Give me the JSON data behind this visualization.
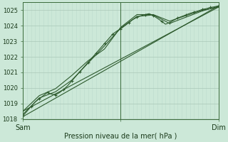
{
  "xlabel": "Pression niveau de la mer( hPa )",
  "ylim": [
    1018,
    1025.5
  ],
  "xlim": [
    0,
    48
  ],
  "yticks": [
    1018,
    1019,
    1020,
    1021,
    1022,
    1023,
    1024,
    1025
  ],
  "xtick_positions": [
    0,
    24,
    48
  ],
  "xtick_labels": [
    "Sam",
    "",
    "Dim"
  ],
  "bg_color": "#cce8d8",
  "grid_color_major": "#aac8b8",
  "grid_color_minor": "#bbdacc",
  "line_color": "#2d5a2d",
  "vline_x": 24,
  "line1_x": [
    0,
    1,
    2,
    3,
    4,
    5,
    6,
    7,
    8,
    9,
    10,
    11,
    12,
    13,
    14,
    15,
    16,
    17,
    18,
    19,
    20,
    21,
    22,
    23,
    24,
    25,
    26,
    27,
    28,
    29,
    30,
    31,
    32,
    33,
    34,
    35,
    36,
    37,
    38,
    39,
    40,
    41,
    42,
    43,
    44,
    45,
    46,
    47,
    48
  ],
  "line1_y": [
    1018.2,
    1018.5,
    1018.8,
    1019.1,
    1019.3,
    1019.5,
    1019.7,
    1019.6,
    1019.55,
    1019.7,
    1019.9,
    1020.15,
    1020.45,
    1020.75,
    1021.05,
    1021.35,
    1021.65,
    1021.95,
    1022.25,
    1022.55,
    1022.85,
    1023.15,
    1023.45,
    1023.65,
    1023.8,
    1024.0,
    1024.2,
    1024.4,
    1024.55,
    1024.65,
    1024.72,
    1024.78,
    1024.65,
    1024.48,
    1024.3,
    1024.1,
    1024.2,
    1024.35,
    1024.5,
    1024.6,
    1024.7,
    1024.8,
    1024.88,
    1024.95,
    1025.05,
    1025.1,
    1025.18,
    1025.22,
    1025.28
  ],
  "line2_x": [
    0,
    4,
    8,
    12,
    16,
    20,
    24,
    28,
    32,
    36,
    40,
    44,
    48
  ],
  "line2_y": [
    1018.3,
    1019.35,
    1019.75,
    1020.5,
    1021.6,
    1022.7,
    1023.85,
    1024.6,
    1024.7,
    1024.15,
    1024.55,
    1024.95,
    1025.25
  ],
  "line3_x": [
    0,
    48
  ],
  "line3_y": [
    1018.15,
    1025.28
  ],
  "line4_x": [
    0,
    4,
    8,
    12,
    16,
    20,
    24,
    28,
    32,
    36,
    40,
    44,
    48
  ],
  "line4_y": [
    1018.5,
    1019.5,
    1019.95,
    1020.8,
    1021.75,
    1022.5,
    1023.9,
    1024.72,
    1024.72,
    1024.3,
    1024.65,
    1025.0,
    1025.2
  ],
  "line5_x": [
    0,
    48
  ],
  "line5_y": [
    1018.5,
    1025.2
  ]
}
